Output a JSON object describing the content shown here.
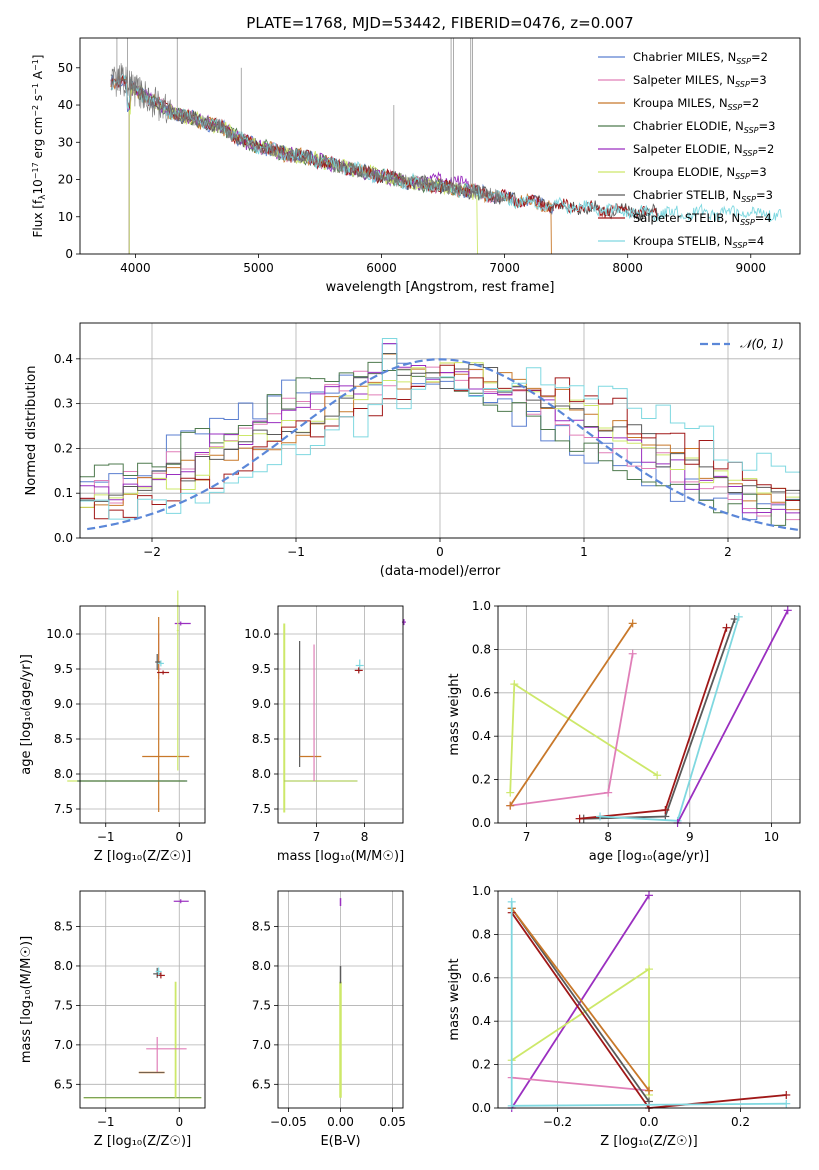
{
  "figure_title": "PLATE=1768, MJD=53442, FIBERID=0476, z=0.007",
  "colors": {
    "chabrier_miles": "#5b7fd0",
    "salpeter_miles": "#e07fb8",
    "kroupa_miles": "#c8782a",
    "chabrier_elodie": "#4e7a4e",
    "salpeter_elodie": "#9a2fc0",
    "kroupa_elodie": "#cde86a",
    "chabrier_stelib": "#5a5a5a",
    "salpeter_stelib": "#a01818",
    "kroupa_stelib": "#7fd8e0",
    "normal_curve": "#5b87d8"
  },
  "chart_data": [
    {
      "id": "spectrum",
      "type": "line",
      "xlabel": "wavelength [Angstrom, rest frame]",
      "ylabel": "Flux [f_λ10^{-17} erg cm^{-2} s^{-1} A^{-1}]",
      "xlim": [
        3550,
        9400
      ],
      "ylim": [
        0,
        58
      ],
      "xticks": [
        4000,
        5000,
        6000,
        7000,
        8000,
        9000
      ],
      "yticks": [
        0,
        10,
        20,
        30,
        40,
        50
      ],
      "legend_position": "top-right",
      "continuum": [
        [
          3800,
          46
        ],
        [
          3900,
          47
        ],
        [
          4000,
          44
        ],
        [
          4100,
          42
        ],
        [
          4200,
          40
        ],
        [
          4300,
          38
        ],
        [
          4400,
          37
        ],
        [
          4500,
          36
        ],
        [
          4600,
          35
        ],
        [
          4700,
          34
        ],
        [
          4800,
          32
        ],
        [
          4900,
          30
        ],
        [
          5000,
          29
        ],
        [
          5200,
          27
        ],
        [
          5400,
          26
        ],
        [
          5600,
          24
        ],
        [
          5800,
          22.5
        ],
        [
          6000,
          21
        ],
        [
          6200,
          19.5
        ],
        [
          6400,
          18.5
        ],
        [
          6600,
          17.5
        ],
        [
          6800,
          16.5
        ],
        [
          7000,
          15
        ],
        [
          7200,
          14
        ],
        [
          7400,
          13
        ],
        [
          7600,
          12.5
        ],
        [
          7800,
          12
        ],
        [
          8000,
          11.5
        ],
        [
          8200,
          11
        ]
      ],
      "series": [
        {
          "name": "Chabrier MILES, N_SSP=2",
          "label_main": "Chabrier MILES, N",
          "label_sub": "SSP",
          "label_tail": "=2",
          "color_key": "chabrier_miles",
          "start": 3800,
          "end": 7400
        },
        {
          "name": "Salpeter MILES, N_SSP=3",
          "label_main": "Salpeter MILES, N",
          "label_sub": "SSP",
          "label_tail": "=3",
          "color_key": "salpeter_miles",
          "start": 3800,
          "end": 7400
        },
        {
          "name": "Kroupa MILES, N_SSP=2",
          "label_main": "Kroupa MILES, N",
          "label_sub": "SSP",
          "label_tail": "=2",
          "color_key": "kroupa_miles",
          "start": 3800,
          "end": 7380,
          "drop_at": 7380
        },
        {
          "name": "Chabrier ELODIE, N_SSP=3",
          "label_main": "Chabrier ELODIE, N",
          "label_sub": "SSP",
          "label_tail": "=3",
          "color_key": "chabrier_elodie",
          "start": 3950,
          "end": 6800
        },
        {
          "name": "Salpeter ELODIE, N_SSP=2",
          "label_main": "Salpeter ELODIE, N",
          "label_sub": "SSP",
          "label_tail": "=2",
          "color_key": "salpeter_elodie",
          "start": 3950,
          "end": 6760,
          "bump": true
        },
        {
          "name": "Kroupa ELODIE, N_SSP=3",
          "label_main": "Kroupa ELODIE, N",
          "label_sub": "SSP",
          "label_tail": "=3",
          "color_key": "kroupa_elodie",
          "start": 3950,
          "end": 6780,
          "drop_at": 6780
        },
        {
          "name": "Chabrier STELIB, N_SSP=3",
          "label_main": "Chabrier STELIB, N",
          "label_sub": "SSP",
          "label_tail": "=3",
          "color_key": "chabrier_stelib",
          "start": 3800,
          "end": 8250
        },
        {
          "name": "Salpeter STELIB, N_SSP=4",
          "label_main": "Salpeter STELIB, N",
          "label_sub": "SSP",
          "label_tail": "=4",
          "color_key": "salpeter_stelib",
          "start": 3800,
          "end": 8250
        },
        {
          "name": "Kroupa STELIB, N_SSP=4",
          "label_main": "Kroupa STELIB, N",
          "label_sub": "SSP",
          "label_tail": "=4",
          "color_key": "kroupa_stelib",
          "start": 3800,
          "end": 9250
        }
      ]
    },
    {
      "id": "residuals",
      "type": "line",
      "xlabel": "(data-model)/error",
      "ylabel": "Normed distribution",
      "xlim": [
        -2.5,
        2.5
      ],
      "ylim": [
        0,
        0.48
      ],
      "xticks": [
        -2,
        -1,
        0,
        1,
        2
      ],
      "yticks": [
        0.0,
        0.1,
        0.2,
        0.3,
        0.4
      ],
      "grid": true,
      "legend_position": "top-right",
      "legend_label": "𝒩(0, 1)",
      "bins": 50,
      "description_values": "normalized histograms of residuals for each of the 9 fits, peaking near 0.3-0.46 around x≈-0.4 and x≈0.6"
    },
    {
      "id": "age_vs_Z",
      "type": "scatter",
      "xlabel": "Z [log10(Z/Z☉)]",
      "ylabel": "age  [log10(age/yr)]",
      "xlim": [
        -1.35,
        0.35
      ],
      "ylim": [
        7.3,
        10.4
      ],
      "xticks": [
        -1,
        0
      ],
      "yticks": [
        7.5,
        8.0,
        8.5,
        9.0,
        9.5,
        10.0
      ],
      "grid": true
    },
    {
      "id": "age_vs_mass",
      "type": "scatter",
      "xlabel": "mass [log10(M/M☉)]",
      "xlim": [
        6.2,
        8.8
      ],
      "ylim": [
        7.3,
        10.4
      ],
      "xticks": [
        7,
        8
      ],
      "yticks": [
        7.5,
        8.0,
        8.5,
        9.0,
        9.5,
        10.0
      ],
      "grid": true
    },
    {
      "id": "weight_vs_age",
      "type": "line",
      "xlabel": "age  [log10(age/yr)]",
      "ylabel": "mass weight",
      "xlim": [
        6.65,
        10.35
      ],
      "ylim": [
        0,
        1.0
      ],
      "xticks": [
        7,
        8,
        9,
        10
      ],
      "yticks": [
        0.0,
        0.2,
        0.4,
        0.6,
        0.8,
        1.0
      ],
      "grid": true
    },
    {
      "id": "mass_vs_Z",
      "type": "scatter",
      "xlabel": "Z [log10(Z/Z☉)]",
      "ylabel": "mass [log10(M/M☉)]",
      "xlim": [
        -1.35,
        0.35
      ],
      "ylim": [
        6.2,
        8.95
      ],
      "xticks": [
        -1,
        0
      ],
      "yticks": [
        6.5,
        7.0,
        7.5,
        8.0,
        8.5
      ],
      "grid": true
    },
    {
      "id": "mass_vs_ebv",
      "type": "scatter",
      "xlabel": "E(B-V)",
      "xlim": [
        -0.06,
        0.06
      ],
      "ylim": [
        6.2,
        8.95
      ],
      "xticks": [
        -0.05,
        0.0,
        0.05
      ],
      "xtick_labels": [
        "−0.05",
        "0.00",
        "0.05"
      ],
      "yticks": [
        6.5,
        7.0,
        7.5,
        8.0,
        8.5
      ],
      "grid": true
    },
    {
      "id": "weight_vs_Z",
      "type": "line",
      "xlabel": "Z [log10(Z/Z☉)]",
      "ylabel": "mass weight",
      "xlim": [
        -0.33,
        0.33
      ],
      "ylim": [
        0,
        1.0
      ],
      "xticks": [
        -0.2,
        0.0,
        0.2
      ],
      "xtick_labels": [
        "−0.2",
        "0.0",
        "0.2"
      ],
      "yticks": [
        0.0,
        0.2,
        0.4,
        0.6,
        0.8,
        1.0
      ],
      "grid": true
    }
  ],
  "age_weight_lines": [
    {
      "color_key": "kroupa_elodie",
      "points": [
        [
          6.8,
          0.14
        ],
        [
          6.85,
          0.64
        ],
        [
          8.6,
          0.22
        ]
      ]
    },
    {
      "color_key": "salpeter_miles",
      "points": [
        [
          6.8,
          0.08
        ],
        [
          8.0,
          0.14
        ],
        [
          8.3,
          0.78
        ]
      ]
    },
    {
      "color_key": "kroupa_miles",
      "points": [
        [
          6.8,
          0.08
        ],
        [
          8.3,
          0.92
        ]
      ]
    },
    {
      "color_key": "chabrier_stelib",
      "points": [
        [
          7.7,
          0.02
        ],
        [
          8.7,
          0.03
        ],
        [
          9.55,
          0.94
        ]
      ]
    },
    {
      "color_key": "salpeter_stelib",
      "points": [
        [
          7.65,
          0.02
        ],
        [
          8.7,
          0.06
        ],
        [
          9.45,
          0.9
        ]
      ]
    },
    {
      "color_key": "kroupa_stelib",
      "points": [
        [
          7.9,
          0.03
        ],
        [
          8.85,
          0.01
        ],
        [
          9.6,
          0.95
        ]
      ]
    },
    {
      "color_key": "salpeter_elodie",
      "points": [
        [
          8.85,
          0.0
        ],
        [
          10.2,
          0.98
        ]
      ]
    }
  ],
  "Z_weight_lines": [
    {
      "color_key": "salpeter_elodie",
      "points": [
        [
          -0.3,
          0.0
        ],
        [
          0.0,
          0.98
        ]
      ]
    },
    {
      "color_key": "kroupa_elodie",
      "points": [
        [
          -0.3,
          0.22
        ],
        [
          0.0,
          0.64
        ],
        [
          0.0,
          0.06
        ]
      ]
    },
    {
      "color_key": "salpeter_miles",
      "points": [
        [
          -0.3,
          0.14
        ],
        [
          0.0,
          0.08
        ]
      ]
    },
    {
      "color_key": "chabrier_stelib",
      "points": [
        [
          -0.3,
          0.92
        ],
        [
          0.0,
          0.03
        ]
      ]
    },
    {
      "color_key": "kroupa_miles",
      "points": [
        [
          -0.3,
          0.92
        ],
        [
          0.0,
          0.08
        ]
      ]
    },
    {
      "color_key": "salpeter_stelib",
      "points": [
        [
          -0.3,
          0.9
        ],
        [
          0.0,
          0.0
        ],
        [
          0.3,
          0.06
        ]
      ]
    },
    {
      "color_key": "kroupa_stelib",
      "points": [
        [
          -0.3,
          0.95
        ],
        [
          -0.3,
          0.01
        ],
        [
          0.3,
          0.02
        ]
      ]
    }
  ]
}
